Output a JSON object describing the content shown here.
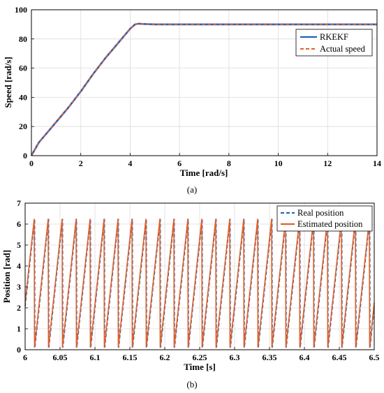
{
  "chart_data": [
    {
      "type": "line",
      "xlabel": "Time [rad/s]",
      "ylabel": "Speed [rad/s]",
      "xlim": [
        0,
        14
      ],
      "ylim": [
        0,
        100
      ],
      "xticks": [
        "0",
        "2",
        "4",
        "6",
        "8",
        "10",
        "12",
        "14"
      ],
      "yticks": [
        "0",
        "20",
        "40",
        "60",
        "80",
        "100"
      ],
      "grid": true,
      "legend_position": "top-right",
      "caption": "(a)",
      "series": [
        {
          "name": "RKEKF",
          "color": "#1f5fbf",
          "style": "solid",
          "x": [
            0,
            0.1,
            0.3,
            0.6,
            1.0,
            1.5,
            2.0,
            2.5,
            3.0,
            3.5,
            4.0,
            4.2,
            4.35,
            4.5,
            5.0,
            6.0,
            8.0,
            10.0,
            12.0,
            14.0
          ],
          "y": [
            0,
            3,
            9,
            15,
            23,
            33,
            44,
            56,
            67,
            77,
            87,
            90,
            90.5,
            90.3,
            90,
            90,
            90,
            90,
            90,
            90
          ]
        },
        {
          "name": "Actual speed",
          "color": "#e0622a",
          "style": "dashed",
          "x": [
            0,
            0.1,
            0.3,
            0.6,
            1.0,
            1.5,
            2.0,
            2.5,
            3.0,
            3.5,
            4.0,
            4.2,
            4.35,
            4.5,
            5.0,
            6.0,
            8.0,
            10.0,
            12.0,
            14.0
          ],
          "y": [
            0,
            3,
            9,
            15,
            23,
            33,
            44,
            56,
            67,
            77,
            87,
            90,
            90.5,
            90.3,
            90,
            90,
            90,
            90,
            90,
            90
          ]
        }
      ]
    },
    {
      "type": "line",
      "xlabel": "Time [s]",
      "ylabel": "Position [rad]",
      "xlim": [
        6,
        6.5
      ],
      "ylim": [
        0,
        7
      ],
      "xticks": [
        "6",
        "6.05",
        "6.1",
        "6.15",
        "6.2",
        "6.25",
        "6.3",
        "6.35",
        "6.4",
        "6.45",
        "6.5"
      ],
      "yticks": [
        "0",
        "1",
        "2",
        "3",
        "4",
        "5",
        "6",
        "7"
      ],
      "grid": true,
      "legend_position": "top-right",
      "caption": "(b)",
      "sawtooth": {
        "period": 0.02,
        "phase": 0.013,
        "min": 0.1,
        "max": 6.25
      },
      "series": [
        {
          "name": "Real position",
          "color": "#1f5fbf",
          "style": "dashed"
        },
        {
          "name": "Estimated position",
          "color": "#e0622a",
          "style": "solid"
        }
      ]
    }
  ]
}
